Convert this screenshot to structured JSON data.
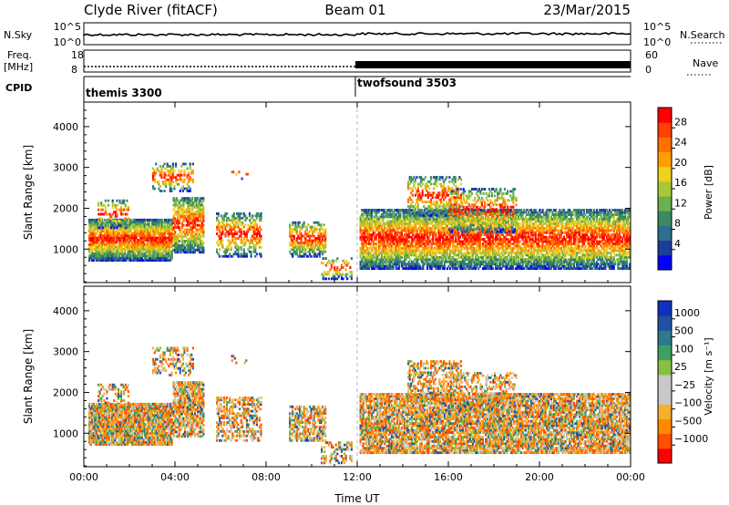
{
  "header": {
    "station": "Clyde River (fitACF)",
    "beam": "Beam 01",
    "date": "23/Mar/2015"
  },
  "strip_panels": {
    "nsky_label": "N.Sky",
    "nsky_ticks": [
      "10^5",
      "10^0"
    ],
    "nsearch_label": "N.Search",
    "nsearch_ticks": [
      "10^5",
      "10^0"
    ],
    "freq_label": "Freq.",
    "freq_unit": "[MHz]",
    "freq_ticks": [
      "18",
      "8"
    ],
    "nave_label": "Nave",
    "nave_ticks": [
      "60",
      "0"
    ],
    "cpid_label": "CPID",
    "cpid_modes": [
      "themis 3300",
      "twofsound 3503"
    ]
  },
  "chart_data": [
    {
      "type": "heatmap",
      "title": "",
      "ylabel": "Slant Range [km]",
      "xlabel": "",
      "x_ticks": [
        "00:00",
        "04:00",
        "08:00",
        "12:00",
        "16:00",
        "20:00",
        "00:00"
      ],
      "x_range_hours": [
        0,
        24
      ],
      "y_ticks": [
        1000,
        2000,
        3000,
        4000
      ],
      "ylim": [
        180,
        4600
      ],
      "colorbar": {
        "label": "Power [dB]",
        "ticks": [
          "4",
          "8",
          "12",
          "16",
          "20",
          "24",
          "28"
        ],
        "range": [
          0,
          30
        ],
        "colors": [
          "#0000ff",
          "#1e3c9c",
          "#2e6e8e",
          "#3a8a60",
          "#6ab04c",
          "#a8c83a",
          "#f0d020",
          "#ffa000",
          "#ff7000",
          "#ff4000",
          "#ff0000"
        ]
      }
    },
    {
      "type": "heatmap",
      "title": "",
      "ylabel": "Slant Range [km]",
      "xlabel": "Time UT",
      "x_ticks": [
        "00:00",
        "04:00",
        "08:00",
        "12:00",
        "16:00",
        "20:00",
        "00:00"
      ],
      "x_range_hours": [
        0,
        24
      ],
      "y_ticks": [
        1000,
        2000,
        3000,
        4000
      ],
      "ylim": [
        180,
        4600
      ],
      "colorbar": {
        "label": "Velocity [m s⁻¹]",
        "ticks": [
          "1000",
          "500",
          "100",
          "25",
          "−25",
          "−100",
          "−500",
          "−1000"
        ],
        "range": [
          -1200,
          1200
        ],
        "colors": [
          "#ff0000",
          "#ff5000",
          "#ff8a00",
          "#f5b030",
          "#c8c8c8",
          "#c8c8c8",
          "#88c040",
          "#40a060",
          "#2e7a8a",
          "#2050a0",
          "#1030c0"
        ]
      }
    }
  ]
}
